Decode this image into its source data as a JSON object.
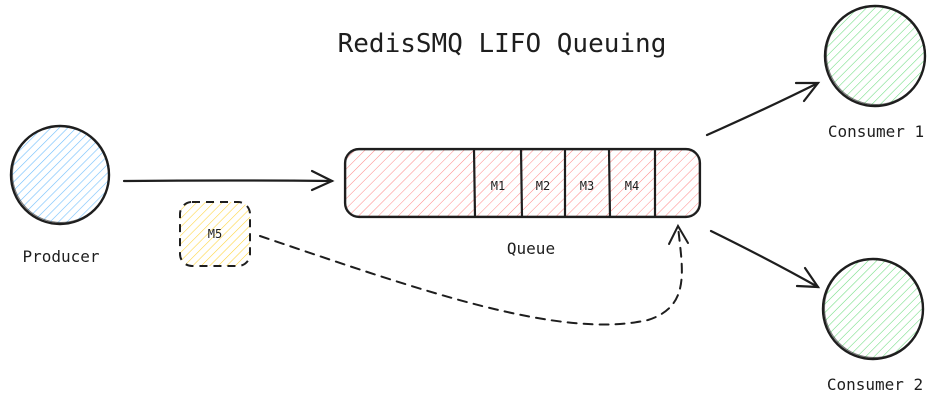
{
  "title": "RedisSMQ LIFO Queuing",
  "producer": {
    "label": "Producer",
    "color": "#a5d8ff"
  },
  "queue": {
    "label": "Queue",
    "color": "#ffc9c9",
    "slots": [
      "M1",
      "M2",
      "M3",
      "M4",
      ""
    ]
  },
  "incoming_message": {
    "label": "M5",
    "color": "#ffec99"
  },
  "consumers": [
    {
      "label": "Consumer 1",
      "color": "#b2f2bb"
    },
    {
      "label": "Consumer 2",
      "color": "#b2f2bb"
    }
  ],
  "stroke_color": "#1e1e1e"
}
